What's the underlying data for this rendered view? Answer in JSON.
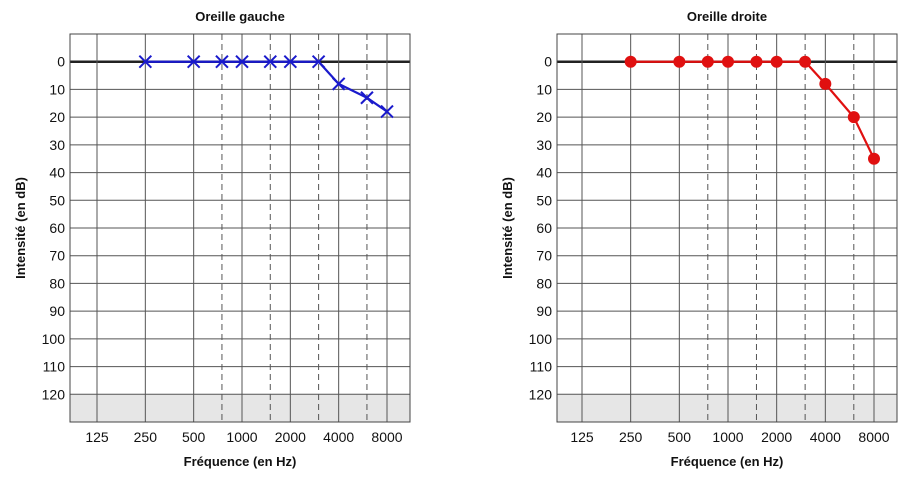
{
  "chart_data": [
    {
      "type": "line",
      "title": "Oreille gauche",
      "xlabel": "Fréquence (en Hz)",
      "ylabel": "Intensité (en dB)",
      "x_ticks": [
        "125",
        "250",
        "500",
        "1000",
        "2000",
        "4000",
        "8000"
      ],
      "y_ticks": [
        "0",
        "10",
        "20",
        "30",
        "40",
        "50",
        "60",
        "70",
        "80",
        "90",
        "100",
        "110",
        "120"
      ],
      "ylim": [
        -10,
        130
      ],
      "y_inverted": true,
      "x_scale": "log2",
      "marker": "cross",
      "color": "#1a1acc",
      "points": [
        {
          "x": 250,
          "y": 0
        },
        {
          "x": 500,
          "y": 0
        },
        {
          "x": 750,
          "y": 0
        },
        {
          "x": 1000,
          "y": 0
        },
        {
          "x": 1500,
          "y": 0
        },
        {
          "x": 2000,
          "y": 0
        },
        {
          "x": 3000,
          "y": 0
        },
        {
          "x": 4000,
          "y": 8
        },
        {
          "x": 6000,
          "y": 13
        },
        {
          "x": 8000,
          "y": 18
        }
      ]
    },
    {
      "type": "line",
      "title": "Oreille droite",
      "xlabel": "Fréquence (en Hz)",
      "ylabel": "Intensité (en dB)",
      "x_ticks": [
        "125",
        "250",
        "500",
        "1000",
        "2000",
        "4000",
        "8000"
      ],
      "y_ticks": [
        "0",
        "10",
        "20",
        "30",
        "40",
        "50",
        "60",
        "70",
        "80",
        "90",
        "100",
        "110",
        "120"
      ],
      "ylim": [
        -10,
        130
      ],
      "y_inverted": true,
      "x_scale": "log2",
      "marker": "circle",
      "color": "#e01010",
      "points": [
        {
          "x": 250,
          "y": 0
        },
        {
          "x": 500,
          "y": 0
        },
        {
          "x": 750,
          "y": 0
        },
        {
          "x": 1000,
          "y": 0
        },
        {
          "x": 1500,
          "y": 0
        },
        {
          "x": 2000,
          "y": 0
        },
        {
          "x": 3000,
          "y": 0
        },
        {
          "x": 4000,
          "y": 8
        },
        {
          "x": 6000,
          "y": 20
        },
        {
          "x": 8000,
          "y": 35
        }
      ]
    }
  ]
}
